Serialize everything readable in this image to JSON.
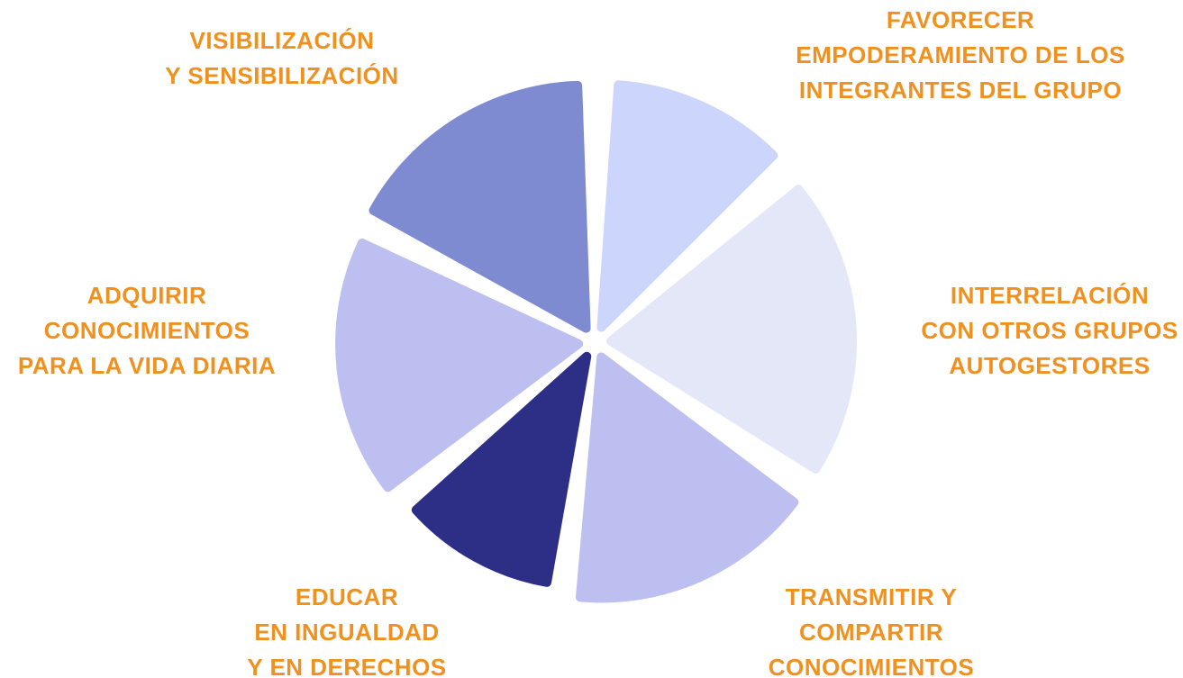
{
  "segments": [
    {
      "label": [
        "VISIBILIZACIÓN",
        "Y SENSIBILIZACIÓN"
      ]
    },
    {
      "label": [
        "FAVORECER",
        "EMPODERAMIENTO DE LOS",
        "INTEGRANTES DEL GRUPO"
      ]
    },
    {
      "label": [
        "INTERRELACIÓN",
        "CON OTROS GRUPOS",
        "AUTOGESTORES"
      ]
    },
    {
      "label": [
        "TRANSMITIR Y",
        "COMPARTIR",
        "CONOCIMIENTOS"
      ]
    },
    {
      "label": [
        "EDUCAR",
        "EN INGUALDAD",
        "Y EN DERECHOS"
      ]
    },
    {
      "label": [
        "ADQUIRIR",
        "CONOCIMIENTOS",
        "PARA LA VIDA DIARIA"
      ]
    }
  ]
}
